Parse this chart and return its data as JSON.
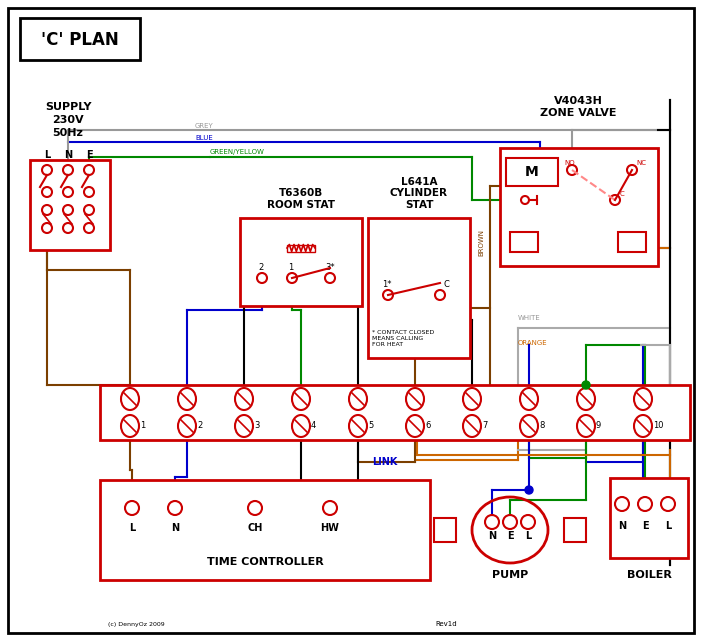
{
  "title": "'C' PLAN",
  "bg_color": "#ffffff",
  "red": "#cc0000",
  "blue": "#0000cc",
  "green": "#008800",
  "grey": "#999999",
  "brown": "#7B3F00",
  "orange": "#cc6600",
  "black": "#000000",
  "pink": "#ff8888",
  "supply_text": "SUPPLY\n230V\n50Hz",
  "zone_valve_text": "V4043H\nZONE VALVE",
  "room_stat_text": "T6360B\nROOM STAT",
  "cylinder_stat_text": "L641A\nCYLINDER\nSTAT",
  "time_controller_text": "TIME CONTROLLER",
  "pump_text": "PUMP",
  "boiler_text": "BOILER",
  "link_text": "LINK",
  "contact_note": "* CONTACT CLOSED\nMEANS CALLING\nFOR HEAT",
  "copyright": "(c) DennyOz 2009",
  "rev": "Rev1d",
  "grey_label": "GREY",
  "blue_label": "BLUE",
  "green_label": "GREEN/YELLOW",
  "brown_label": "BROWN",
  "white_label": "WHITE",
  "orange_label": "ORANGE"
}
